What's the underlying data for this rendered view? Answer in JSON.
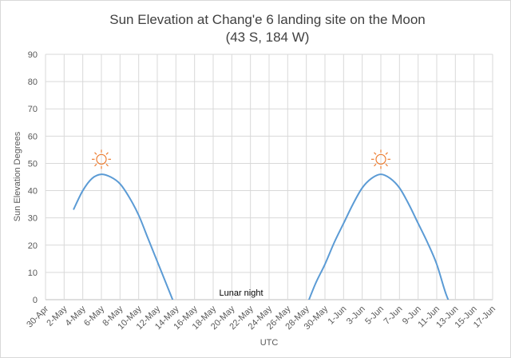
{
  "chart_data": {
    "type": "line",
    "title": "Sun Elevation  at Chang'e 6 landing site on the Moon",
    "subtitle": "(43 S, 184 W)",
    "xlabel": "UTC",
    "ylabel": "Sun Elevation Degrees",
    "ylim": [
      0,
      90
    ],
    "yticks": [
      "0",
      "10",
      "20",
      "30",
      "40",
      "50",
      "60",
      "70",
      "80",
      "90"
    ],
    "xlim": [
      "30-Apr",
      "17-Jun"
    ],
    "xtick_labels": [
      "30-Apr",
      "2-May",
      "4-May",
      "6-May",
      "8-May",
      "10-May",
      "12-May",
      "14-May",
      "16-May",
      "18-May",
      "20-May",
      "22-May",
      "24-May",
      "26-May",
      "28-May",
      "30-May",
      "1-Jun",
      "3-Jun",
      "5-Jun",
      "7-Jun",
      "9-Jun",
      "11-Jun",
      "13-Jun",
      "15-Jun",
      "17-Jun"
    ],
    "grid": true,
    "line_color": "#5b9bd5",
    "series": [
      {
        "x": [
          "3-May",
          "4-May",
          "5-May",
          "6-May",
          "7-May",
          "8-May",
          "9-May",
          "10-May",
          "11-May",
          "12-May",
          "13-May",
          "14-May"
        ],
        "y": [
          33,
          40,
          44.5,
          46,
          45,
          42.5,
          37.5,
          31,
          22.5,
          14,
          5.5,
          -3
        ]
      },
      {
        "x": [
          "28-May",
          "29-May",
          "30-May",
          "31-May",
          "1-Jun",
          "2-Jun",
          "3-Jun",
          "4-Jun",
          "5-Jun",
          "6-Jun",
          "7-Jun",
          "8-Jun",
          "9-Jun",
          "10-Jun",
          "11-Jun",
          "12-Jun",
          "13-Jun"
        ],
        "y": [
          -2.5,
          6,
          13,
          21,
          28,
          35,
          41,
          44.5,
          46,
          44.5,
          41,
          35,
          28,
          21,
          13,
          2,
          -6
        ]
      }
    ],
    "annotations": [
      {
        "text": "Lunar night",
        "x": "21-May",
        "y": 1.5
      },
      {
        "icon": "sun-icon",
        "x": "6-May",
        "y": 51.5,
        "color": "#ed7d31"
      },
      {
        "icon": "sun-icon",
        "x": "5-Jun",
        "y": 51.5,
        "color": "#ed7d31"
      }
    ]
  }
}
